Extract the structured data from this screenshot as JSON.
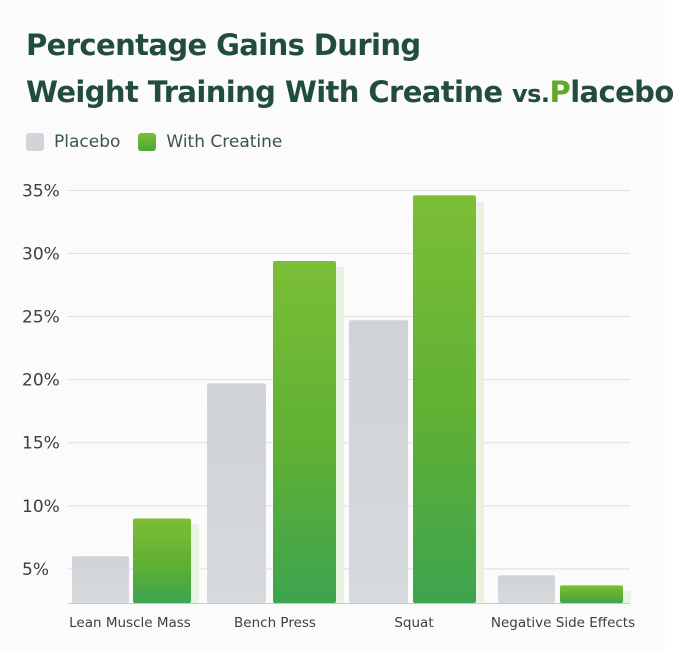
{
  "chart_data": {
    "type": "bar",
    "title_line1": "Percentage Gains During",
    "title_line2_main": "Weight Training With Creatine",
    "title_line2_vs": "vs.",
    "title_line2_pl": "P",
    "title_line2_rest": "lacebo",
    "categories": [
      "Lean Muscle Mass",
      "Bench Press",
      "Squat",
      "Negative Side Effects"
    ],
    "series": [
      {
        "name": "Placebo",
        "values": [
          6,
          19.7,
          24.7,
          4.5
        ],
        "color": "#d1d4d8"
      },
      {
        "name": "With Creatine",
        "values": [
          9,
          29.4,
          34.6,
          3.7
        ],
        "color": "#5fb233"
      }
    ],
    "yticks": [
      "5%",
      "10%",
      "15%",
      "20%",
      "25%",
      "30%",
      "35%"
    ],
    "ytick_values": [
      5,
      10,
      15,
      20,
      25,
      30,
      35
    ],
    "ylim": [
      2.3,
      35
    ],
    "xlabel": "",
    "ylabel": "",
    "grid": true,
    "legend_position": "top-left"
  }
}
